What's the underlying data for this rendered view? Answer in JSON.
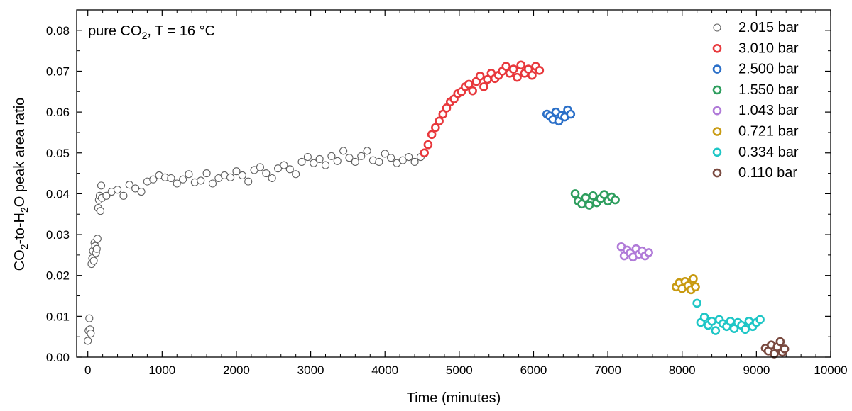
{
  "chart_data": {
    "type": "scatter",
    "title": "",
    "annotation": {
      "prefix": "pure CO",
      "sub": "2",
      "suffix": ", T = 16 °C"
    },
    "xlabel": "Time (minutes)",
    "ylabel": {
      "p1": "CO",
      "s1": "2",
      "p2": "-to-H",
      "s2": "2",
      "p3": "O peak area ratio"
    },
    "xlim": [
      -150,
      10000
    ],
    "ylim": [
      0,
      0.085
    ],
    "xticks": [
      0,
      1000,
      2000,
      3000,
      4000,
      5000,
      6000,
      7000,
      8000,
      9000,
      10000
    ],
    "yticks": [
      0.0,
      0.01,
      0.02,
      0.03,
      0.04,
      0.05,
      0.06,
      0.07,
      0.08
    ],
    "xtick_labels": [
      "0",
      "1000",
      "2000",
      "3000",
      "4000",
      "5000",
      "6000",
      "7000",
      "8000",
      "9000",
      "10000"
    ],
    "ytick_labels": [
      "0.00",
      "0.01",
      "0.02",
      "0.03",
      "0.04",
      "0.05",
      "0.06",
      "0.07",
      "0.08"
    ],
    "grid": false,
    "legend_position": "top-right",
    "series": [
      {
        "name": "2.015 bar",
        "color": "#606060",
        "points": [
          [
            0,
            0.004
          ],
          [
            10,
            0.0065
          ],
          [
            20,
            0.0095
          ],
          [
            30,
            0.0068
          ],
          [
            40,
            0.0058
          ],
          [
            50,
            0.0228
          ],
          [
            60,
            0.0242
          ],
          [
            70,
            0.026
          ],
          [
            80,
            0.0236
          ],
          [
            90,
            0.028
          ],
          [
            100,
            0.0272
          ],
          [
            110,
            0.0255
          ],
          [
            120,
            0.0265
          ],
          [
            130,
            0.029
          ],
          [
            140,
            0.0365
          ],
          [
            150,
            0.0385
          ],
          [
            160,
            0.0395
          ],
          [
            170,
            0.0358
          ],
          [
            180,
            0.042
          ],
          [
            190,
            0.039
          ],
          [
            250,
            0.0395
          ],
          [
            320,
            0.0405
          ],
          [
            400,
            0.041
          ],
          [
            480,
            0.0395
          ],
          [
            560,
            0.0422
          ],
          [
            640,
            0.0413
          ],
          [
            720,
            0.0405
          ],
          [
            800,
            0.043
          ],
          [
            880,
            0.0435
          ],
          [
            960,
            0.0445
          ],
          [
            1040,
            0.044
          ],
          [
            1120,
            0.0438
          ],
          [
            1200,
            0.0425
          ],
          [
            1280,
            0.0435
          ],
          [
            1360,
            0.0448
          ],
          [
            1440,
            0.0428
          ],
          [
            1520,
            0.0432
          ],
          [
            1600,
            0.045
          ],
          [
            1680,
            0.0425
          ],
          [
            1760,
            0.0438
          ],
          [
            1840,
            0.0445
          ],
          [
            1920,
            0.044
          ],
          [
            2000,
            0.0455
          ],
          [
            2080,
            0.0445
          ],
          [
            2160,
            0.043
          ],
          [
            2240,
            0.0458
          ],
          [
            2320,
            0.0465
          ],
          [
            2400,
            0.045
          ],
          [
            2480,
            0.0438
          ],
          [
            2560,
            0.0462
          ],
          [
            2640,
            0.047
          ],
          [
            2720,
            0.046
          ],
          [
            2800,
            0.0448
          ],
          [
            2880,
            0.0478
          ],
          [
            2960,
            0.049
          ],
          [
            3040,
            0.0475
          ],
          [
            3120,
            0.0485
          ],
          [
            3200,
            0.047
          ],
          [
            3280,
            0.0492
          ],
          [
            3360,
            0.048
          ],
          [
            3440,
            0.0505
          ],
          [
            3520,
            0.0488
          ],
          [
            3600,
            0.0478
          ],
          [
            3680,
            0.0492
          ],
          [
            3760,
            0.0505
          ],
          [
            3840,
            0.0482
          ],
          [
            3920,
            0.0478
          ],
          [
            4000,
            0.0498
          ],
          [
            4080,
            0.0488
          ],
          [
            4160,
            0.0475
          ],
          [
            4240,
            0.0482
          ],
          [
            4320,
            0.049
          ],
          [
            4400,
            0.0478
          ],
          [
            4480,
            0.049
          ]
        ]
      },
      {
        "name": "3.010 bar",
        "color": "#e8383c",
        "points": [
          [
            4530,
            0.05
          ],
          [
            4580,
            0.052
          ],
          [
            4630,
            0.0545
          ],
          [
            4680,
            0.0562
          ],
          [
            4730,
            0.0578
          ],
          [
            4780,
            0.0595
          ],
          [
            4830,
            0.061
          ],
          [
            4880,
            0.0625
          ],
          [
            4930,
            0.0632
          ],
          [
            4980,
            0.0645
          ],
          [
            5030,
            0.065
          ],
          [
            5080,
            0.0662
          ],
          [
            5130,
            0.0668
          ],
          [
            5180,
            0.0652
          ],
          [
            5230,
            0.0675
          ],
          [
            5280,
            0.0688
          ],
          [
            5330,
            0.0662
          ],
          [
            5380,
            0.068
          ],
          [
            5430,
            0.0695
          ],
          [
            5480,
            0.0682
          ],
          [
            5530,
            0.069
          ],
          [
            5580,
            0.07
          ],
          [
            5630,
            0.0712
          ],
          [
            5680,
            0.0695
          ],
          [
            5730,
            0.0705
          ],
          [
            5780,
            0.0685
          ],
          [
            5830,
            0.0715
          ],
          [
            5880,
            0.0695
          ],
          [
            5930,
            0.0705
          ],
          [
            5980,
            0.069
          ],
          [
            6030,
            0.0712
          ],
          [
            6080,
            0.0702
          ]
        ]
      },
      {
        "name": "2.500 bar",
        "color": "#2a6fc8",
        "points": [
          [
            6180,
            0.0595
          ],
          [
            6220,
            0.059
          ],
          [
            6260,
            0.0582
          ],
          [
            6300,
            0.06
          ],
          [
            6340,
            0.0578
          ],
          [
            6380,
            0.0592
          ],
          [
            6420,
            0.0588
          ],
          [
            6460,
            0.0605
          ],
          [
            6500,
            0.0595
          ]
        ]
      },
      {
        "name": "1.550 bar",
        "color": "#2e9e5e",
        "points": [
          [
            6560,
            0.04
          ],
          [
            6600,
            0.0382
          ],
          [
            6650,
            0.0375
          ],
          [
            6700,
            0.039
          ],
          [
            6750,
            0.0372
          ],
          [
            6800,
            0.0395
          ],
          [
            6850,
            0.0378
          ],
          [
            6900,
            0.0388
          ],
          [
            6950,
            0.0398
          ],
          [
            7000,
            0.0382
          ],
          [
            7050,
            0.0392
          ],
          [
            7100,
            0.0385
          ]
        ]
      },
      {
        "name": "1.043 bar",
        "color": "#b07ad8",
        "points": [
          [
            7180,
            0.027
          ],
          [
            7220,
            0.0248
          ],
          [
            7260,
            0.0262
          ],
          [
            7300,
            0.0255
          ],
          [
            7340,
            0.0245
          ],
          [
            7380,
            0.0265
          ],
          [
            7420,
            0.0252
          ],
          [
            7460,
            0.026
          ],
          [
            7500,
            0.0248
          ],
          [
            7550,
            0.0256
          ]
        ]
      },
      {
        "name": "0.721 bar",
        "color": "#c89a10",
        "points": [
          [
            7920,
            0.0172
          ],
          [
            7960,
            0.0182
          ],
          [
            8000,
            0.0168
          ],
          [
            8040,
            0.0185
          ],
          [
            8080,
            0.0175
          ],
          [
            8120,
            0.0165
          ],
          [
            8150,
            0.0192
          ],
          [
            8180,
            0.0172
          ]
        ]
      },
      {
        "name": "0.334 bar",
        "color": "#1ec6c6",
        "points": [
          [
            8200,
            0.0132
          ],
          [
            8250,
            0.0085
          ],
          [
            8300,
            0.0098
          ],
          [
            8350,
            0.0078
          ],
          [
            8400,
            0.0088
          ],
          [
            8450,
            0.0065
          ],
          [
            8500,
            0.0092
          ],
          [
            8550,
            0.0082
          ],
          [
            8600,
            0.0075
          ],
          [
            8650,
            0.0088
          ],
          [
            8700,
            0.007
          ],
          [
            8750,
            0.0085
          ],
          [
            8800,
            0.0078
          ],
          [
            8850,
            0.0068
          ],
          [
            8900,
            0.0088
          ],
          [
            8950,
            0.0075
          ],
          [
            9000,
            0.0085
          ],
          [
            9050,
            0.0092
          ]
        ]
      },
      {
        "name": "0.110 bar",
        "color": "#7a4a40",
        "points": [
          [
            9120,
            0.0022
          ],
          [
            9160,
            0.0015
          ],
          [
            9200,
            0.003
          ],
          [
            9240,
            0.0008
          ],
          [
            9280,
            0.0025
          ],
          [
            9320,
            0.0038
          ],
          [
            9350,
            0.0012
          ],
          [
            9380,
            0.002
          ]
        ]
      }
    ]
  }
}
